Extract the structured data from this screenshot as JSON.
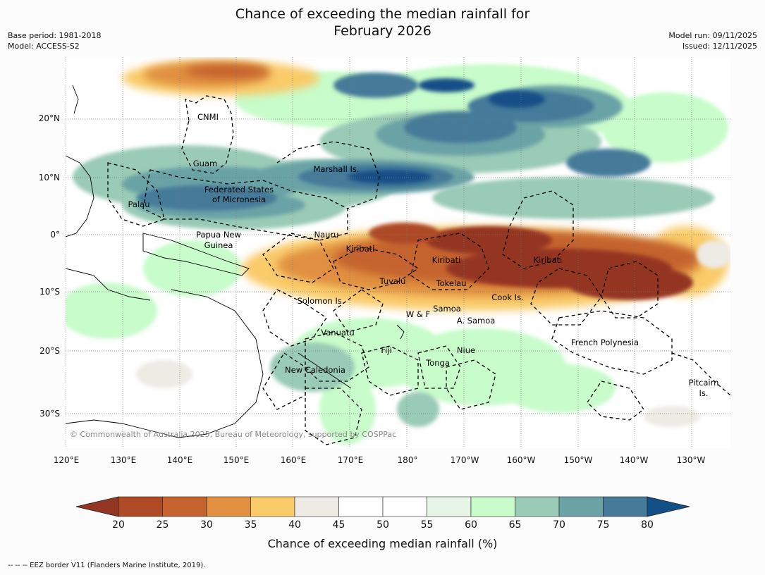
{
  "header": {
    "title_line1": "Chance of exceeding the median rainfall for",
    "title_line2": "February 2026",
    "base_period": "Base period: 1981-2018",
    "model": "Model: ACCESS-S2",
    "model_run": "Model run: 09/11/2025",
    "issued": "Issued: 12/11/2025"
  },
  "map": {
    "lat_labels": [
      "20°N",
      "10°N",
      "0°",
      "10°S",
      "20°S",
      "30°S"
    ],
    "lon_labels": [
      "120°E",
      "130°E",
      "140°E",
      "150°E",
      "160°E",
      "170°E",
      "180°",
      "170°W",
      "160°W",
      "150°W",
      "140°W",
      "130°W"
    ],
    "places": {
      "cnmi": "CNMI",
      "guam": "Guam",
      "marshall": "Marshall Is.",
      "fsm_line1": "Federated States",
      "fsm_line2": "of Micronesia",
      "palau": "Palau",
      "png_line1": "Papua New",
      "png_line2": "Guinea",
      "nauru": "Nauru",
      "kiribati_west": "Kiribati",
      "kiribati_central": "Kiribati",
      "kiribati_east": "Kiribati",
      "tuvalu": "Tuvalu",
      "tokelau": "Tokelau",
      "cook": "Cook Is.",
      "solomon": "Solomon Is.",
      "samoa": "Samoa",
      "wf": "W & F",
      "asamoa": "A. Samoa",
      "vanuatu": "Vanuatu",
      "fiji": "Fiji",
      "niue": "Niue",
      "tonga": "Tonga",
      "newcal": "New Caledonia",
      "frpoly": "French Polynesia",
      "pitcairn_line1": "Pitcairn",
      "pitcairn_line2": "Is."
    },
    "copyright": "© Commonwealth of Australia 2025, Bureau of Meteorology, supported by COSPPac"
  },
  "colorbar": {
    "ticks": [
      "20",
      "25",
      "30",
      "35",
      "40",
      "45",
      "50",
      "55",
      "60",
      "65",
      "70",
      "75",
      "80"
    ],
    "colors": [
      "#943621",
      "#ae4a26",
      "#c5632f",
      "#e09040",
      "#f9cb69",
      "#eeeae4",
      "#ffffff",
      "#ffffff",
      "#e6f5e6",
      "#c8fcca",
      "#9acbb6",
      "#6aa3a6",
      "#457a99",
      "#134f87"
    ],
    "label": "Chance of exceeding median rainfall (%)"
  },
  "footer": {
    "text": "--  --  -- EEZ border V11 (Flanders Marine Institute, 2019)."
  }
}
